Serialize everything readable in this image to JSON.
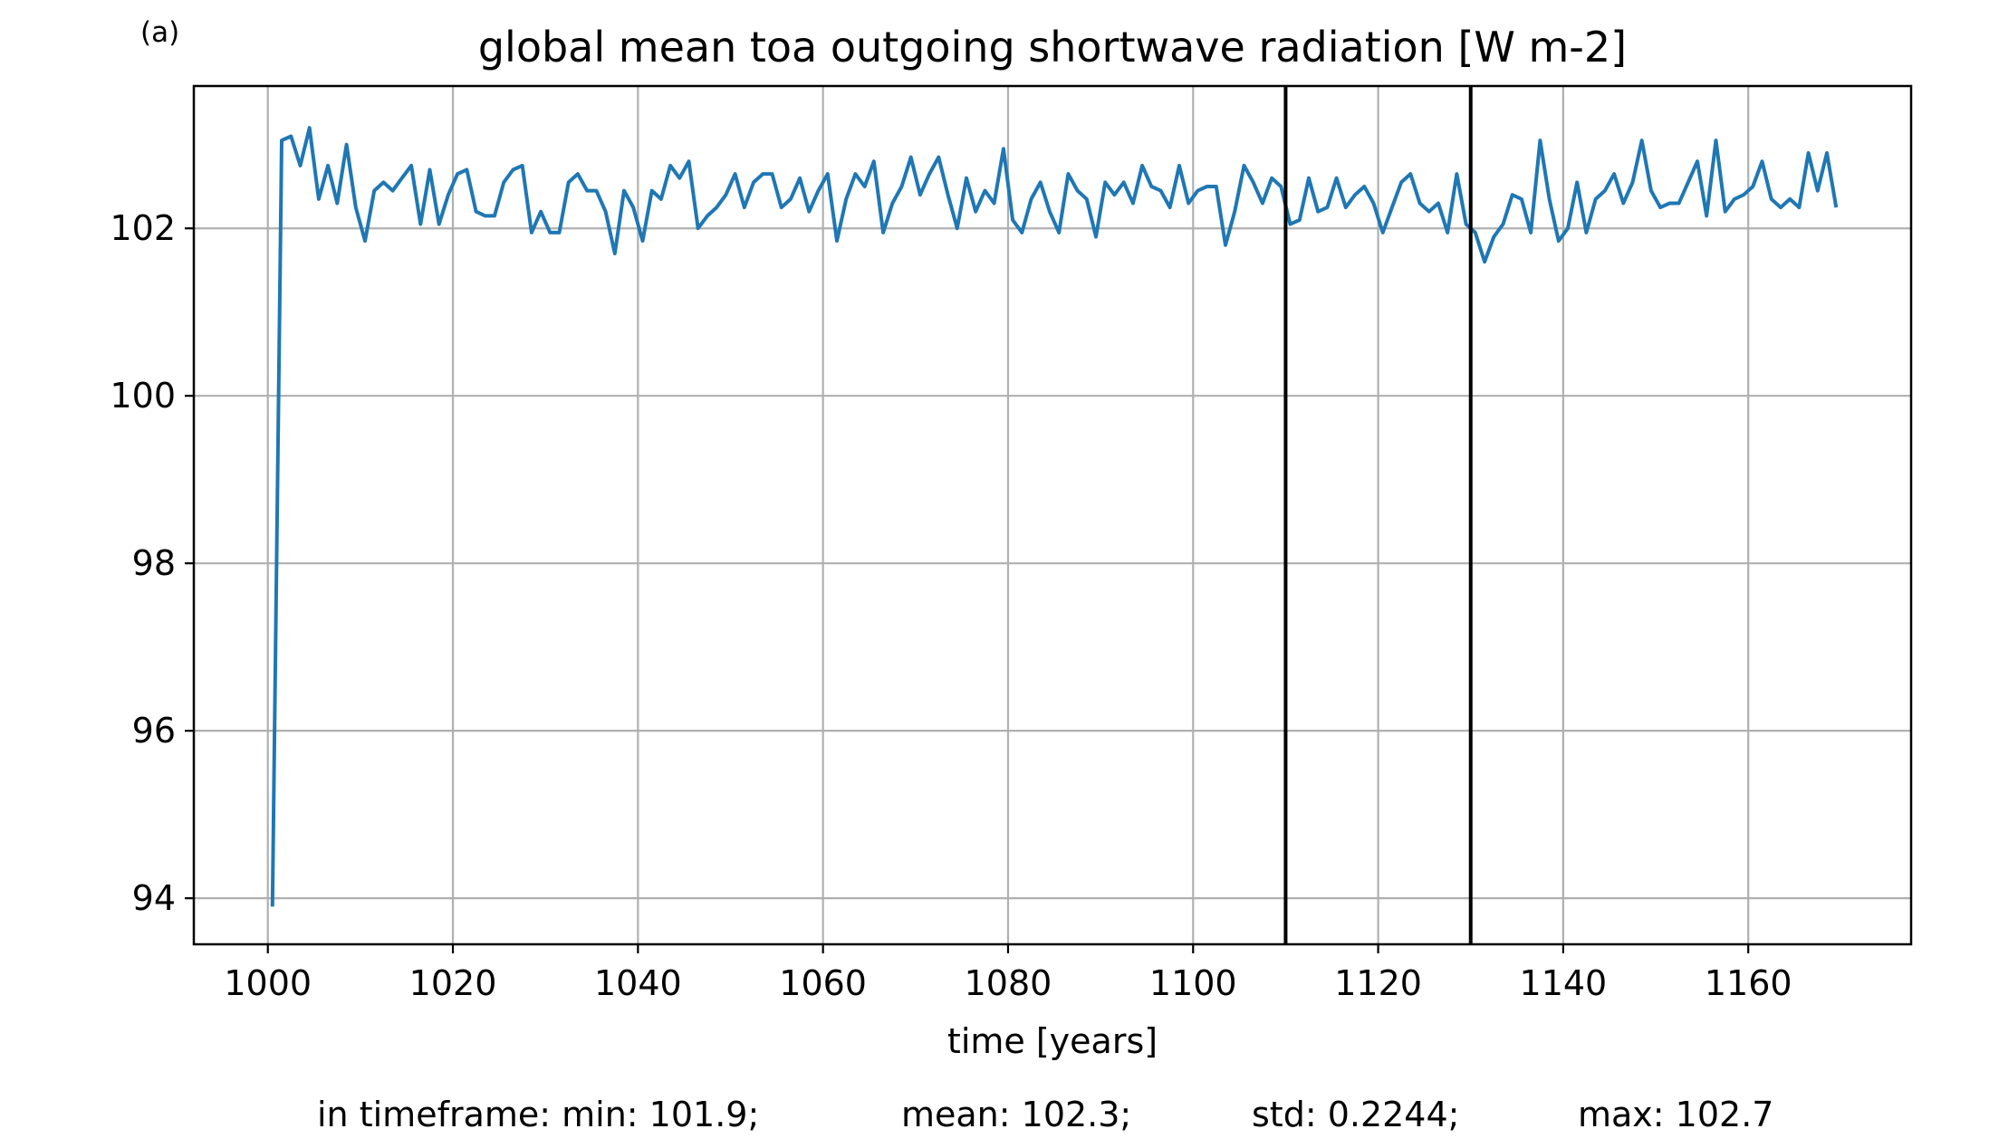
{
  "chart_data": {
    "type": "line",
    "panel_label": "(a)",
    "title": "global mean toa outgoing shortwave radiation [W m-2]",
    "xlabel": "time [years]",
    "ylabel": "",
    "xlim": [
      992,
      1177.6
    ],
    "ylim": [
      93.45,
      103.7
    ],
    "grid": true,
    "x_ticks": [
      1000,
      1020,
      1040,
      1060,
      1080,
      1100,
      1120,
      1140,
      1160
    ],
    "y_ticks": [
      94,
      96,
      98,
      100,
      102
    ],
    "x_tick_labels": [
      "1000",
      "1020",
      "1040",
      "1060",
      "1080",
      "1100",
      "1120",
      "1140",
      "1160"
    ],
    "y_tick_labels": [
      "94",
      "96",
      "98",
      "100",
      "102"
    ],
    "line_color": "#1f77b4",
    "vlines": [
      1110,
      1130
    ],
    "vline_color": "#000000",
    "series": [
      {
        "x_start": 1000.5,
        "x_step": 1,
        "values": [
          93.9,
          103.05,
          103.1,
          102.75,
          103.2,
          102.35,
          102.75,
          102.3,
          103.0,
          102.25,
          101.85,
          102.45,
          102.55,
          102.45,
          102.6,
          102.75,
          102.05,
          102.7,
          102.05,
          102.4,
          102.65,
          102.7,
          102.2,
          102.15,
          102.15,
          102.55,
          102.7,
          102.75,
          101.95,
          102.2,
          101.95,
          101.95,
          102.55,
          102.65,
          102.45,
          102.45,
          102.2,
          101.7,
          102.45,
          102.25,
          101.85,
          102.45,
          102.35,
          102.75,
          102.6,
          102.8,
          102.0,
          102.15,
          102.25,
          102.4,
          102.65,
          102.25,
          102.55,
          102.65,
          102.65,
          102.25,
          102.35,
          102.6,
          102.2,
          102.45,
          102.65,
          101.85,
          102.35,
          102.65,
          102.5,
          102.8,
          101.95,
          102.3,
          102.5,
          102.85,
          102.4,
          102.65,
          102.85,
          102.4,
          102.0,
          102.6,
          102.2,
          102.45,
          102.3,
          102.95,
          102.1,
          101.95,
          102.35,
          102.55,
          102.2,
          101.95,
          102.65,
          102.45,
          102.35,
          101.9,
          102.55,
          102.4,
          102.55,
          102.3,
          102.75,
          102.5,
          102.45,
          102.25,
          102.75,
          102.3,
          102.45,
          102.5,
          102.5,
          101.8,
          102.2,
          102.75,
          102.55,
          102.3,
          102.6,
          102.5,
          102.05,
          102.1,
          102.6,
          102.2,
          102.25,
          102.6,
          102.25,
          102.4,
          102.5,
          102.3,
          101.95,
          102.25,
          102.55,
          102.65,
          102.3,
          102.2,
          102.3,
          101.95,
          102.65,
          102.05,
          101.95,
          101.6,
          101.9,
          102.05,
          102.4,
          102.35,
          101.95,
          103.05,
          102.35,
          101.85,
          102.0,
          102.55,
          101.95,
          102.35,
          102.45,
          102.65,
          102.3,
          102.55,
          103.05,
          102.45,
          102.25,
          102.3,
          102.3,
          102.55,
          102.8,
          102.15,
          103.05,
          102.2,
          102.35,
          102.4,
          102.5,
          102.8,
          102.35,
          102.25,
          102.35,
          102.25,
          102.9,
          102.45,
          102.9,
          102.25
        ]
      }
    ],
    "stats": {
      "min": "in timeframe: min: 101.9;",
      "mean": "mean: 102.3;",
      "std": "std: 0.2244;",
      "max": "max: 102.7"
    }
  }
}
